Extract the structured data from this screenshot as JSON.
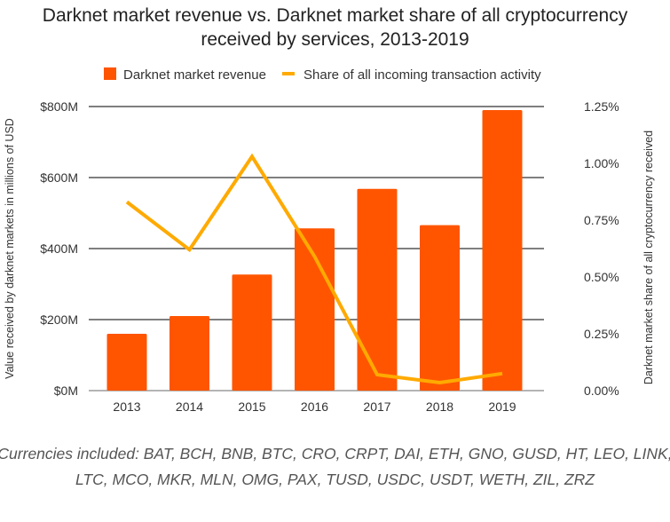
{
  "chart_data": {
    "type": "bar+line",
    "title_line1": "Darknet market revenue vs. Darknet market share of all cryptocurrency",
    "title_line2": "received by services, 2013-2019",
    "categories": [
      "2013",
      "2014",
      "2015",
      "2016",
      "2017",
      "2018",
      "2019"
    ],
    "series": [
      {
        "name": "Darknet market revenue",
        "type": "bar",
        "axis": "left",
        "color": "#ff5500",
        "values": [
          160,
          210,
          327,
          457,
          568,
          466,
          790
        ]
      },
      {
        "name": "Share of all incoming transaction activity",
        "type": "line",
        "axis": "right",
        "color": "#ffaa00",
        "values": [
          0.83,
          0.62,
          1.03,
          0.59,
          0.07,
          0.035,
          0.075
        ]
      }
    ],
    "ylabel_left": "Value received by darknet markets in millions of USD",
    "ylabel_right": "Darknet market share of all cryptocurrency received",
    "ylim_left": [
      0,
      800
    ],
    "ylim_right": [
      0,
      1.25
    ],
    "yticks_left": [
      "$0M",
      "$200M",
      "$400M",
      "$600M",
      "$800M"
    ],
    "yticks_right": [
      "0.00%",
      "0.25%",
      "0.50%",
      "0.75%",
      "1.00%",
      "1.25%"
    ],
    "grid": true,
    "legend_position": "top"
  },
  "footnote_line1": "Currencies included: BAT, BCH, BNB, BTC, CRO, CRPT, DAI, ETH, GNO, GUSD, HT, LEO, LINK,",
  "footnote_line2": "LTC, MCO, MKR, MLN, OMG, PAX, TUSD, USDC, USDT, WETH, ZIL, ZRZ"
}
